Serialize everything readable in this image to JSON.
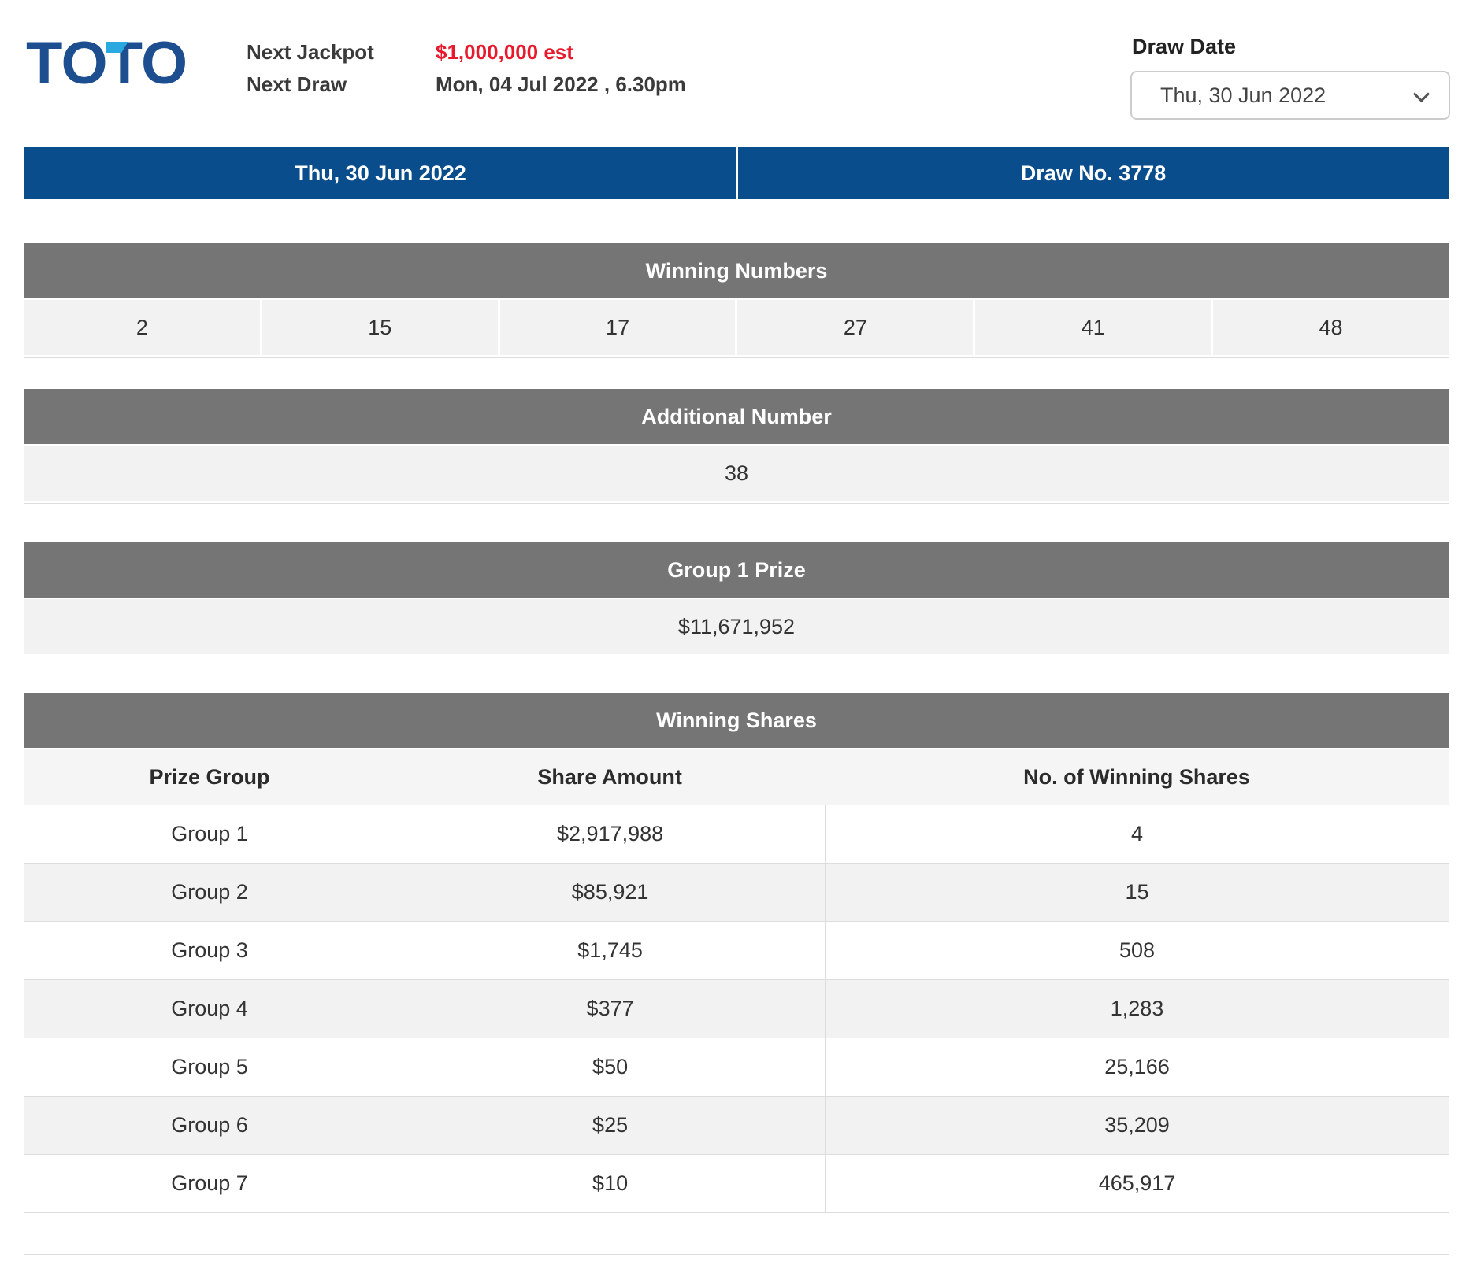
{
  "colors": {
    "brand_blue": "#1d4e8f",
    "brand_accent_blue": "#2aa9e0",
    "header_bar_blue": "#0a4d8d",
    "section_bar_gray": "#757575",
    "row_light_gray": "#f2f2f2",
    "jackpot_red": "#e8192c"
  },
  "brand": {
    "logo_letters": [
      "T",
      "O",
      "T",
      "O"
    ]
  },
  "header": {
    "next_jackpot_label": "Next Jackpot",
    "next_jackpot_value": "$1,000,000 est",
    "next_draw_label": "Next Draw",
    "next_draw_value": "Mon, 04 Jul 2022 , 6.30pm",
    "draw_date_label": "Draw Date",
    "draw_date_selected": "Thu, 30 Jun 2022"
  },
  "result": {
    "draw_date": "Thu, 30 Jun 2022",
    "draw_no": "Draw No. 3778",
    "winning_numbers_label": "Winning Numbers",
    "winning_numbers": [
      "2",
      "15",
      "17",
      "27",
      "41",
      "48"
    ],
    "additional_number_label": "Additional Number",
    "additional_number": "38",
    "group1_prize_label": "Group 1 Prize",
    "group1_prize_value": "$11,671,952",
    "winning_shares_label": "Winning Shares",
    "shares_columns": [
      "Prize Group",
      "Share Amount",
      "No. of Winning Shares"
    ],
    "shares_rows": [
      {
        "group": "Group 1",
        "amount": "$2,917,988",
        "shares": "4"
      },
      {
        "group": "Group 2",
        "amount": "$85,921",
        "shares": "15"
      },
      {
        "group": "Group 3",
        "amount": "$1,745",
        "shares": "508"
      },
      {
        "group": "Group 4",
        "amount": "$377",
        "shares": "1,283"
      },
      {
        "group": "Group 5",
        "amount": "$50",
        "shares": "25,166"
      },
      {
        "group": "Group 6",
        "amount": "$25",
        "shares": "35,209"
      },
      {
        "group": "Group 7",
        "amount": "$10",
        "shares": "465,917"
      }
    ]
  }
}
